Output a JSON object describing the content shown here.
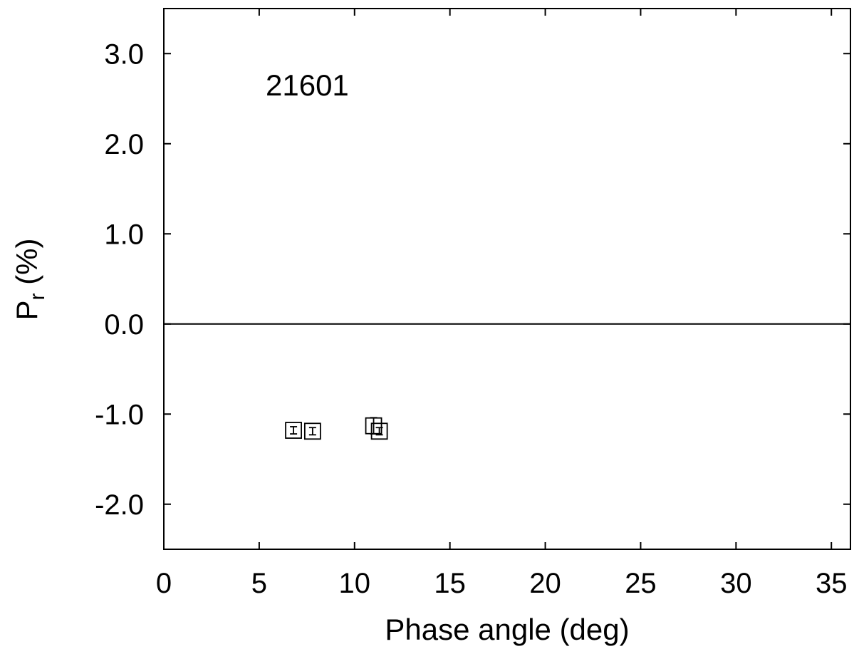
{
  "chart_data": {
    "type": "scatter",
    "annotation": "21601",
    "xlabel": "Phase angle (deg)",
    "ylabel": {
      "main": "P",
      "sub": "r",
      "unit": " (%)"
    },
    "xlim": [
      0,
      36
    ],
    "ylim": [
      -2.5,
      3.5
    ],
    "x_ticks": [
      {
        "value": 0,
        "label": "0"
      },
      {
        "value": 5,
        "label": "5"
      },
      {
        "value": 10,
        "label": "10"
      },
      {
        "value": 15,
        "label": "15"
      },
      {
        "value": 20,
        "label": "20"
      },
      {
        "value": 25,
        "label": "25"
      },
      {
        "value": 30,
        "label": "30"
      },
      {
        "value": 35,
        "label": "35"
      }
    ],
    "y_ticks": [
      {
        "value": -2.0,
        "label": "-2.0"
      },
      {
        "value": -1.0,
        "label": "-1.0"
      },
      {
        "value": 0.0,
        "label": "0.0"
      },
      {
        "value": 1.0,
        "label": "1.0"
      },
      {
        "value": 2.0,
        "label": "2.0"
      },
      {
        "value": 3.0,
        "label": "3.0"
      }
    ],
    "reference_line_y": 0,
    "grid": false,
    "marker": "open-square",
    "points": [
      {
        "x": 6.8,
        "y": -1.18,
        "err": 0.04
      },
      {
        "x": 7.8,
        "y": -1.19,
        "err": 0.04
      },
      {
        "x": 11.0,
        "y": -1.13,
        "err": 0.09
      },
      {
        "x": 11.3,
        "y": -1.19,
        "err": 0.04
      }
    ]
  }
}
